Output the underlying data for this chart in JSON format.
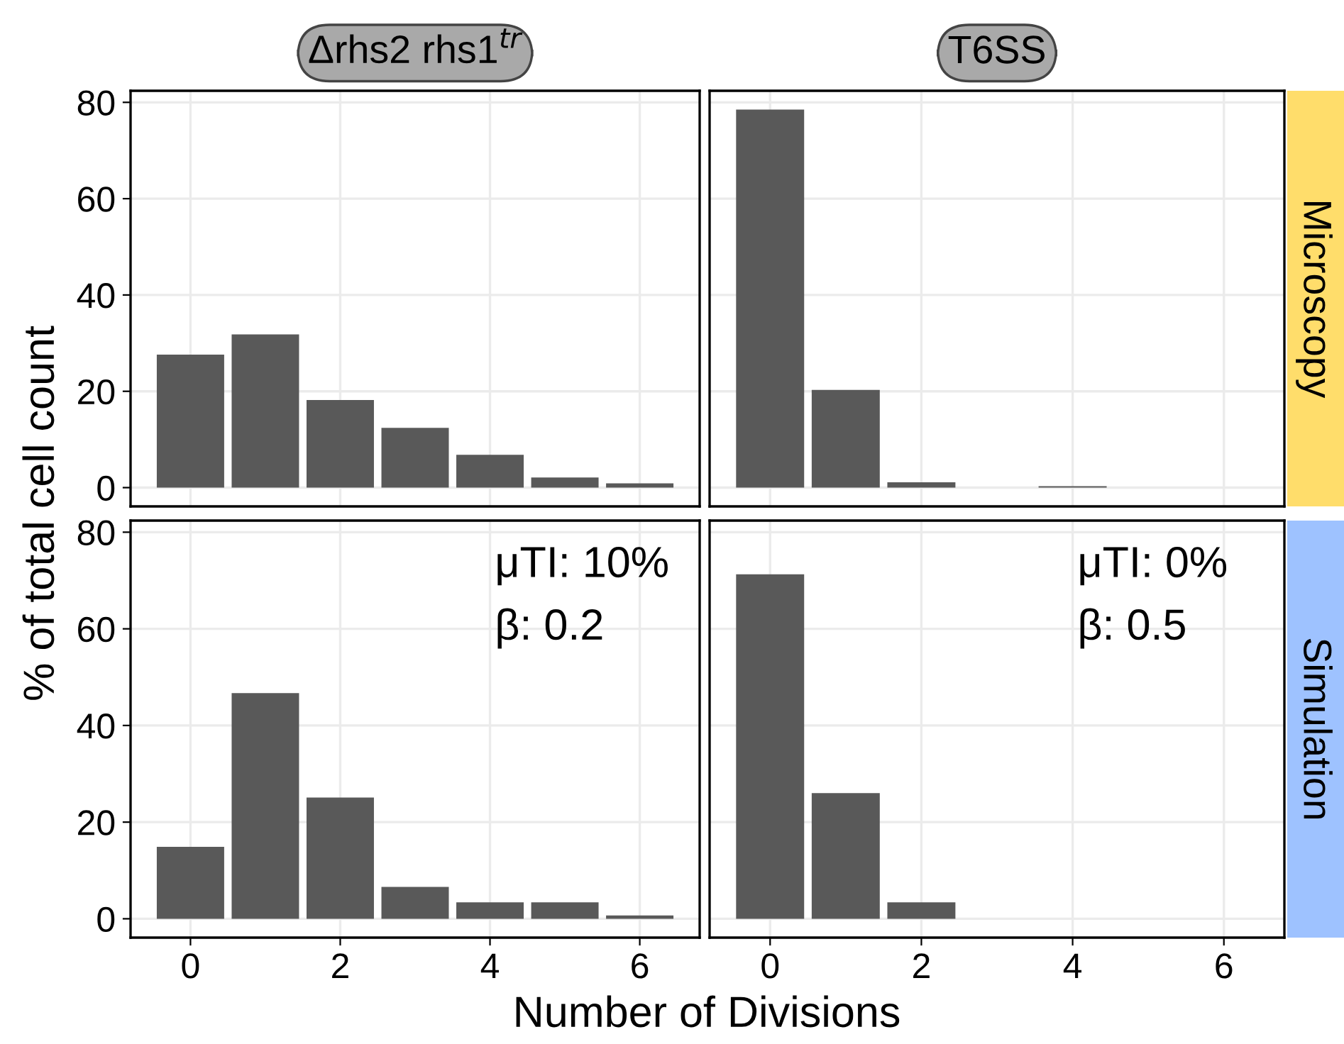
{
  "chart_data": [
    {
      "type": "bar",
      "title": "Δrhs2 rhs1$^{tr}$",
      "ylabel": "% of total cell count",
      "x": [
        0,
        1,
        2,
        3,
        4,
        5,
        6
      ],
      "values": [
        27.6,
        31.8,
        18.2,
        12.4,
        6.8,
        2.1,
        0.9
      ],
      "color": "#595959",
      "xlim": [
        -0.8,
        6.8
      ],
      "xticks": [
        0,
        2,
        4,
        6
      ],
      "ylim": [
        -3.9,
        82.4
      ],
      "yticks": [
        0,
        20,
        40,
        60,
        80
      ],
      "grid": true,
      "tick_labels": "y"
    },
    {
      "type": "bar",
      "title": "T6SS",
      "y2label": "Microscopy",
      "x": [
        0,
        1,
        2,
        3,
        4,
        5,
        6
      ],
      "values": [
        78.5,
        20.3,
        1.1,
        0,
        0.3,
        0,
        0
      ],
      "color": "#595959",
      "xlim": [
        -0.8,
        6.8
      ],
      "xticks": [
        0,
        2,
        4,
        6
      ],
      "ylim": [
        -3.9,
        82.4
      ],
      "yticks": [
        0,
        20,
        40,
        60,
        80
      ],
      "grid": true,
      "tick_labels": false
    },
    {
      "type": "bar",
      "xlabel": "Number of Divisions",
      "annotations": [
        "μTI: 10%",
        "β: 0.2"
      ],
      "x": [
        0,
        1,
        2,
        3,
        4,
        5,
        6
      ],
      "values": [
        14.9,
        46.7,
        25.1,
        6.6,
        3.4,
        3.4,
        0.7
      ],
      "color": "#595959",
      "xlim": [
        -0.8,
        6.8
      ],
      "xticks": [
        0,
        2,
        4,
        6
      ],
      "ylim": [
        -3.9,
        82.4
      ],
      "yticks": [
        0,
        20,
        40,
        60,
        80
      ],
      "grid": true
    },
    {
      "type": "bar",
      "y2label": "Simulation",
      "annotations": [
        "μTI: 0%",
        "β: 0.5"
      ],
      "x": [
        0,
        1,
        2,
        3,
        4,
        5,
        6
      ],
      "values": [
        71.3,
        26.0,
        3.4,
        0,
        0,
        0,
        0
      ],
      "color": "#595959",
      "xlim": [
        -0.8,
        6.8
      ],
      "xticks": [
        0,
        2,
        4,
        6
      ],
      "ylim": [
        -3.9,
        82.4
      ],
      "yticks": [
        0,
        20,
        40,
        60,
        80
      ],
      "grid": true,
      "tick_labels": "x"
    }
  ]
}
